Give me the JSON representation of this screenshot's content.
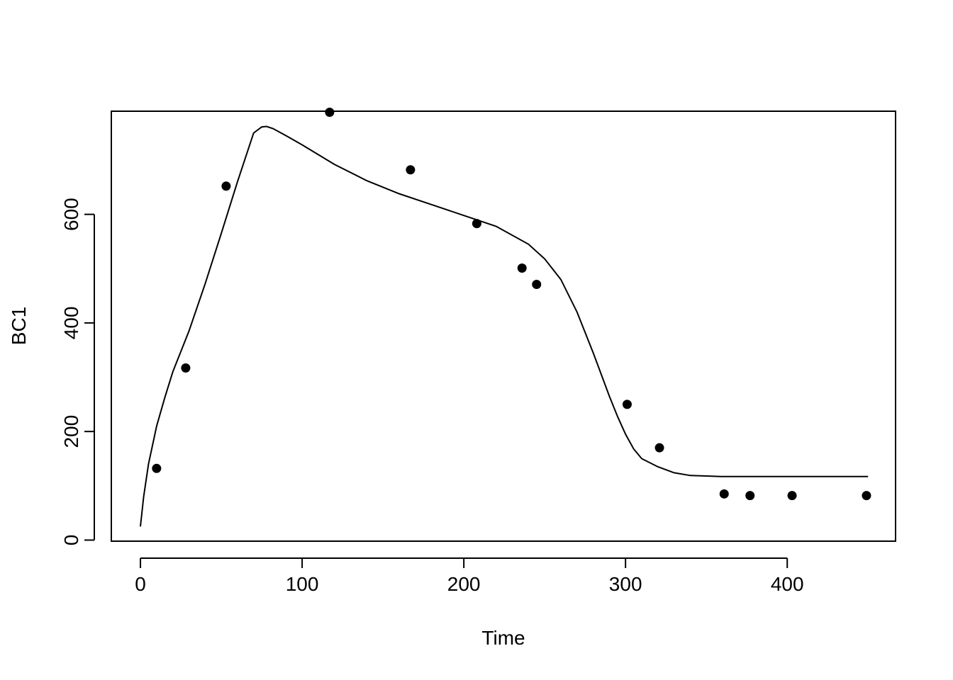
{
  "chart_data": {
    "type": "scatter",
    "title": "",
    "xlabel": "Time",
    "ylabel": "BC1",
    "xlim": [
      -18,
      467
    ],
    "ylim": [
      -2,
      790
    ],
    "x_ticks": [
      0,
      100,
      200,
      300,
      400
    ],
    "y_ticks": [
      0,
      200,
      400,
      600
    ],
    "x_tick_labels": [
      "0",
      "100",
      "200",
      "300",
      "400"
    ],
    "y_tick_labels": [
      "0",
      "200",
      "400",
      "600"
    ],
    "grid": false,
    "legend": "none",
    "points": {
      "x": [
        10,
        28,
        53,
        117,
        167,
        208,
        236,
        245,
        301,
        321,
        361,
        377,
        403,
        449
      ],
      "y": [
        132,
        317,
        652,
        788,
        682,
        583,
        501,
        471,
        250,
        170,
        85,
        82,
        82,
        82
      ]
    },
    "fitted_curve": {
      "x": [
        0,
        2,
        5,
        10,
        15,
        20,
        30,
        40,
        50,
        60,
        70,
        75,
        78,
        82,
        90,
        100,
        120,
        140,
        160,
        180,
        200,
        220,
        240,
        250,
        260,
        270,
        280,
        290,
        295,
        300,
        305,
        310,
        320,
        330,
        340,
        350,
        360,
        400,
        450
      ],
      "y": [
        25,
        80,
        140,
        210,
        262,
        310,
        385,
        472,
        565,
        660,
        750,
        761,
        762,
        758,
        745,
        728,
        692,
        662,
        638,
        618,
        598,
        578,
        545,
        518,
        480,
        420,
        345,
        265,
        228,
        195,
        168,
        150,
        135,
        124,
        119,
        118,
        117,
        117,
        117
      ]
    },
    "colors": {
      "points": "#000000",
      "curve": "#000000",
      "frame": "#000000"
    }
  }
}
